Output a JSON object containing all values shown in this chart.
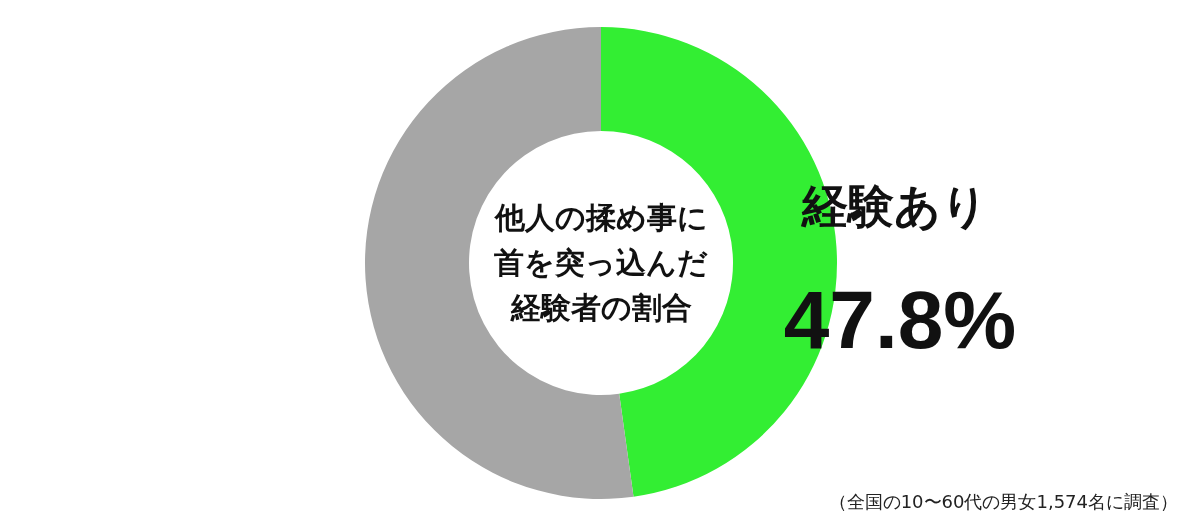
{
  "chart_data": {
    "type": "donut",
    "title": "他人の揉め事に首を突っ込んだ経験者の割合",
    "categories": [
      "経験あり",
      null
    ],
    "values": [
      47.8,
      52.2
    ],
    "colors": [
      "#33ee33",
      "#a6a6a6"
    ],
    "value_labels": [
      "47.8%",
      null
    ],
    "annotations": [
      "（全国の10〜60代の男女1,574名に調査）"
    ]
  }
}
